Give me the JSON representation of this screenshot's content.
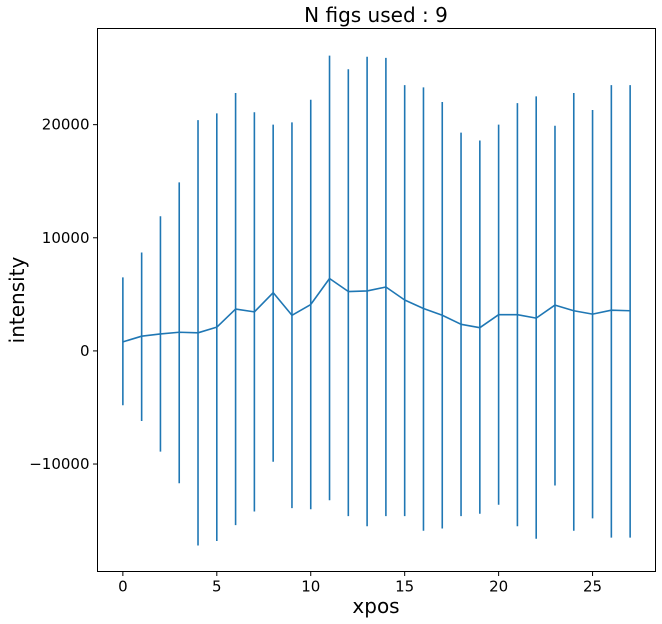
{
  "chart_data": {
    "type": "line",
    "title": "N figs used : 9",
    "xlabel": "xpos",
    "ylabel": "intensity",
    "xlim": [
      -1.35,
      28.35
    ],
    "ylim": [
      -19500,
      28500
    ],
    "xticks": [
      0,
      5,
      10,
      15,
      20,
      25
    ],
    "yticks": [
      -10000,
      0,
      10000,
      20000
    ],
    "ytick_labels": [
      "−10000",
      "0",
      "10000",
      "20000"
    ],
    "grid": false,
    "color": "#1f77b4",
    "series": [
      {
        "x": [
          0,
          1,
          2,
          3,
          4,
          5,
          6,
          7,
          8,
          9,
          10,
          11,
          12,
          13,
          14,
          15,
          16,
          17,
          18,
          19,
          20,
          21,
          22,
          23,
          24,
          25,
          26,
          27
        ],
        "y": [
          800,
          1300,
          1500,
          1650,
          1600,
          2100,
          3700,
          3450,
          5150,
          3150,
          4100,
          6400,
          5250,
          5300,
          5650,
          4500,
          3750,
          3150,
          2350,
          2050,
          3200,
          3200,
          2900,
          4050,
          3550,
          3250,
          3600,
          3550
        ],
        "err_low": [
          -4800,
          -6200,
          -8900,
          -11700,
          -17200,
          -16800,
          -15400,
          -14200,
          -9800,
          -13900,
          -14000,
          -13200,
          -14600,
          -15500,
          -14600,
          -14600,
          -15900,
          -15700,
          -14600,
          -14400,
          -13600,
          -15500,
          -16600,
          -11900,
          -15900,
          -14800,
          -16500,
          -16500
        ],
        "err_high": [
          6500,
          8700,
          11900,
          14900,
          20400,
          21000,
          22800,
          21100,
          20000,
          20200,
          22200,
          26100,
          24900,
          26000,
          25900,
          23500,
          23300,
          22000,
          19300,
          18600,
          20000,
          21900,
          22500,
          19900,
          22800,
          21300,
          23500,
          23500
        ]
      }
    ]
  }
}
